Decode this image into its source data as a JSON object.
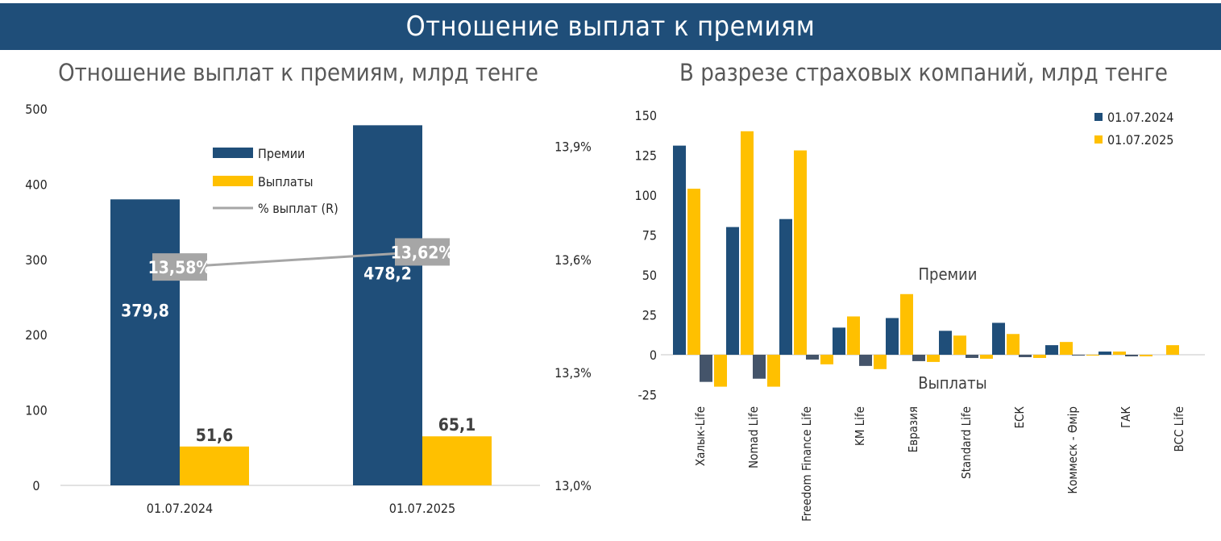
{
  "banner": {
    "title": "Отношение выплат к премиям"
  },
  "colors": {
    "premium": "#1f4e79",
    "payout": "#ffc000",
    "navy2024": "#1f4e79",
    "yellow2025": "#ffc000",
    "negative2024": "#44546a",
    "line": "#a6a6a6",
    "banner": "#1f4e79",
    "text": "#404040"
  },
  "chart_data": [
    {
      "type": "bar",
      "title": "Отношение выплат к премиям, млрд тенге",
      "categories": [
        "01.07.2024",
        "01.07.2025"
      ],
      "series": [
        {
          "name": "Премии",
          "values": [
            379.8,
            478.2
          ],
          "labels": [
            "379,8",
            "478,2"
          ]
        },
        {
          "name": "Выплаты",
          "values": [
            51.6,
            65.1
          ],
          "labels": [
            "51,6",
            "65,1"
          ]
        }
      ],
      "line_series": {
        "name": "%  выплат (R)",
        "values": [
          13.58,
          13.62
        ],
        "labels": [
          "13,58%",
          "13,62%"
        ]
      },
      "ylim": [
        0,
        500
      ],
      "yticks": [
        0,
        100,
        200,
        300,
        400,
        500
      ],
      "ytick_labels": [
        "0",
        "100",
        "200",
        "300",
        "400",
        "500"
      ],
      "y2lim": [
        13.0,
        14.0
      ],
      "y2ticks": [
        13.0,
        13.3,
        13.6,
        13.9
      ],
      "y2tick_labels": [
        "13,0%",
        "13,3%",
        "13,6%",
        "13,9%"
      ],
      "legend": [
        "Премии",
        "Выплаты",
        "%  выплат (R)"
      ],
      "legend_position": "top-center"
    },
    {
      "type": "bar",
      "title": "В разрезе страховых компаний, млрд тенге",
      "categories": [
        "Халык-Life",
        "Nomad Life",
        "Freedom Finance Life",
        "KM Life",
        "Евразия",
        "Standard Life",
        "ЕСК",
        "Коммеск - Өмір",
        "ГАК",
        "BCC Life"
      ],
      "series": [
        {
          "name": "01.07.2024",
          "premiums": [
            131,
            80,
            85,
            17,
            23,
            15,
            20,
            6,
            2,
            0
          ],
          "payouts": [
            -17,
            -15,
            -3,
            -7,
            -4,
            -2,
            -1.5,
            -0.5,
            -1,
            0
          ]
        },
        {
          "name": "01.07.2025",
          "premiums": [
            104,
            140,
            128,
            24,
            38,
            12,
            13,
            8,
            2,
            6
          ],
          "payouts": [
            -20,
            -20,
            -6,
            -9,
            -4.5,
            -2.5,
            -2,
            -0.5,
            -1,
            0
          ]
        }
      ],
      "annotations": [
        "Премии",
        "Выплаты"
      ],
      "ylim": [
        -25,
        150
      ],
      "yticks": [
        -25,
        0,
        25,
        50,
        75,
        100,
        125,
        150
      ],
      "ytick_labels": [
        "-25",
        "0",
        "25",
        "50",
        "75",
        "100",
        "125",
        "150"
      ],
      "legend": [
        "01.07.2024",
        "01.07.2025"
      ],
      "legend_position": "top-right"
    }
  ]
}
